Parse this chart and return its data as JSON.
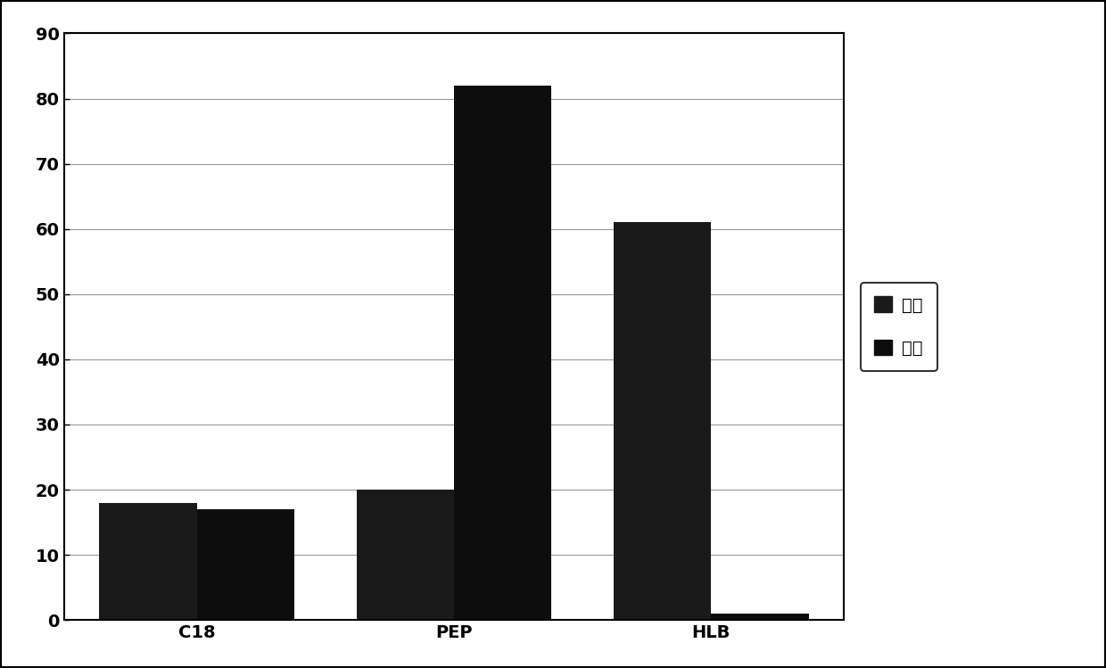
{
  "categories": [
    "C18",
    "PEP",
    "HLB"
  ],
  "series": [
    {
      "label": "毒物",
      "values": [
        18,
        20,
        61
      ],
      "color": "#1a1a1a"
    },
    {
      "label": "药物",
      "values": [
        17,
        82,
        1
      ],
      "color": "#0d0d0d"
    }
  ],
  "ylim": [
    0,
    90
  ],
  "yticks": [
    0,
    10,
    20,
    30,
    40,
    50,
    60,
    70,
    80,
    90
  ],
  "bar_width": 0.38,
  "background_color": "#ffffff",
  "grid_color": "#999999",
  "axis_color": "#000000",
  "font_size_ticks": 14,
  "font_size_legend": 14,
  "border_linewidth": 2.5,
  "figure_border_color": "#000000"
}
